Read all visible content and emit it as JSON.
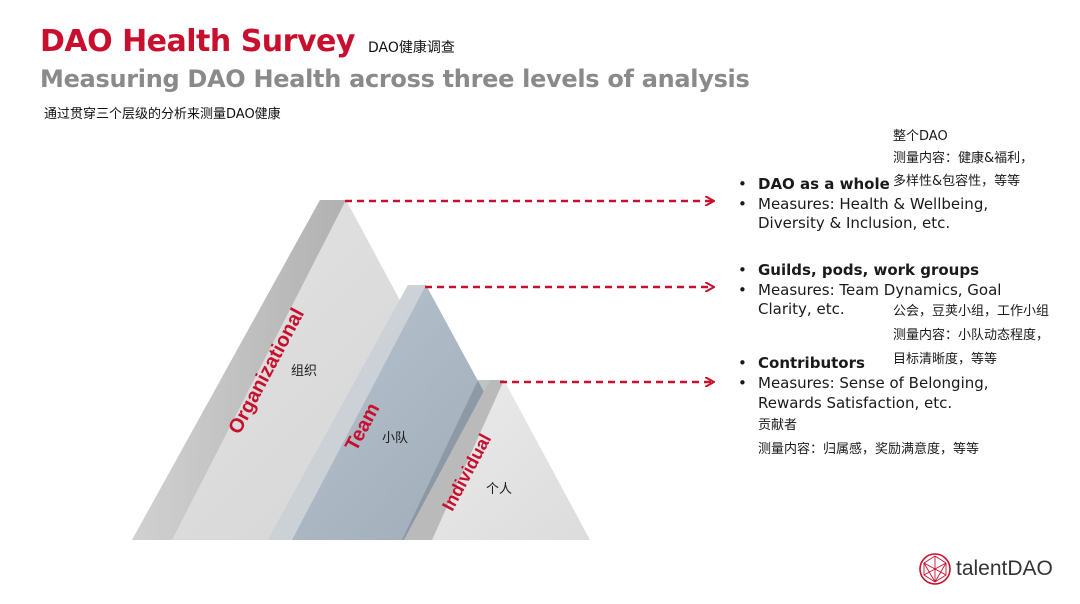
{
  "header": {
    "title": "DAO Health Survey",
    "title_cn": "DAO健康调查",
    "subtitle": "Measuring DAO Health across three levels of analysis",
    "subtitle_cn": "通过贯穿三个层级的分析来测量DAO健康"
  },
  "levels": {
    "organizational": {
      "label": "Organizational",
      "label_cn": "组织"
    },
    "team": {
      "label": "Team",
      "label_cn": "小队"
    },
    "individual": {
      "label": "Individual",
      "label_cn": "个人"
    }
  },
  "measures": {
    "whole": {
      "heading": "DAO as a whole",
      "measure_line1": "Measures: Health & Wellbeing,",
      "measure_line2": "Diversity & Inclusion, etc.",
      "cn_line1": "整个DAO",
      "cn_line2": "测量内容：健康&福利，",
      "cn_line3": "多样性&包容性，等等"
    },
    "guilds": {
      "heading": "Guilds, pods, work groups",
      "measure_line1": "Measures: Team Dynamics, Goal",
      "measure_line2": "Clarity, etc.",
      "cn_line1": "公会，豆荚小组，工作小组",
      "cn_line2": "测量内容：小队动态程度，",
      "cn_line3": "目标清晰度，等等"
    },
    "contributors": {
      "heading": "Contributors",
      "measure_line1": "Measures: Sense of Belonging,",
      "measure_line2": "Rewards Satisfaction, etc.",
      "cn_line1": "贡献者",
      "cn_line2": "测量内容：归属感，奖励满意度，等等"
    }
  },
  "bullet_char": "•",
  "colors": {
    "accent": "#c8102e",
    "gray": "#8a8a8a",
    "team_fill": "#aab6c2"
  },
  "logo": {
    "text": "talentDAO"
  }
}
